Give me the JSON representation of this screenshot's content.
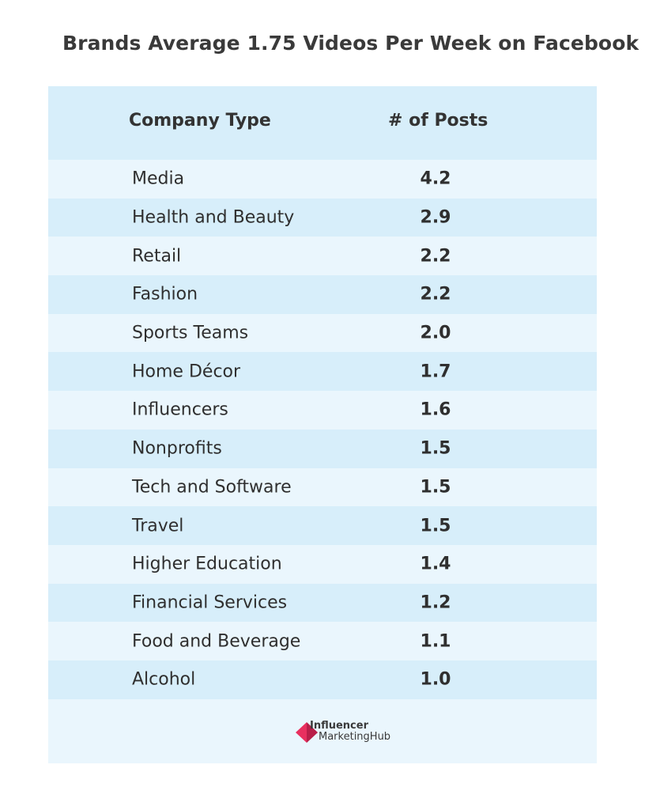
{
  "title": "Brands Average 1.75 Videos Per Week on Facebook",
  "table": {
    "headers": {
      "company_type": "Company Type",
      "posts": "# of Posts"
    }
  },
  "chart_data": {
    "type": "table",
    "title": "Brands Average 1.75 Videos Per Week on Facebook",
    "columns": [
      "Company Type",
      "# of Posts"
    ],
    "rows": [
      {
        "label": "Media",
        "value": "4.2"
      },
      {
        "label": "Health and Beauty",
        "value": "2.9"
      },
      {
        "label": "Retail",
        "value": "2.2"
      },
      {
        "label": "Fashion",
        "value": "2.2"
      },
      {
        "label": "Sports Teams",
        "value": "2.0"
      },
      {
        "label": "Home Décor",
        "value": "1.7"
      },
      {
        "label": "Influencers",
        "value": "1.6"
      },
      {
        "label": "Nonprofits",
        "value": "1.5"
      },
      {
        "label": "Tech and Software",
        "value": "1.5"
      },
      {
        "label": "Travel",
        "value": "1.5"
      },
      {
        "label": "Higher Education",
        "value": "1.4"
      },
      {
        "label": "Financial Services",
        "value": "1.2"
      },
      {
        "label": "Food and Beverage",
        "value": "1.1"
      },
      {
        "label": "Alcohol",
        "value": "1.0"
      }
    ]
  },
  "logo": {
    "line1": "Influencer",
    "line2": "MarketingHub",
    "icon": "influencer-marketing-hub-logo-icon",
    "color": "#e8305f"
  },
  "colors": {
    "panel": "#eaf6fd",
    "band": "#d7eefa",
    "text": "#2f2f2f"
  }
}
